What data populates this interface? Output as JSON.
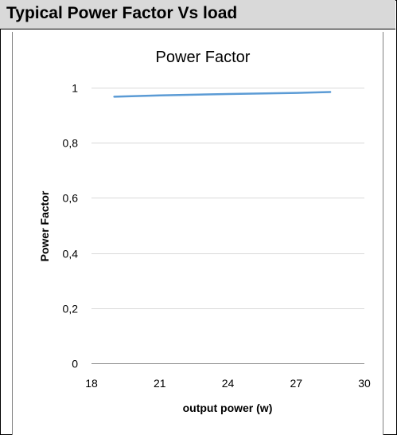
{
  "header": {
    "title": "Typical Power Factor Vs load"
  },
  "chart_data": {
    "type": "line",
    "title": "Power Factor",
    "xlabel": "output power (w)",
    "ylabel": "Power Factor",
    "xlim": [
      18,
      30
    ],
    "ylim": [
      0,
      1
    ],
    "xticks": [
      18,
      21,
      24,
      27,
      30
    ],
    "xtick_labels": [
      "18",
      "21",
      "24",
      "27",
      "30"
    ],
    "yticks": [
      0,
      0.2,
      0.4,
      0.6,
      0.8,
      1
    ],
    "ytick_labels": [
      "0",
      "0,2",
      "0,4",
      "0,6",
      "0,8",
      "1"
    ],
    "grid": "horizontal",
    "legend": "none",
    "series": [
      {
        "color": "#5b9bd5",
        "x": [
          19,
          21,
          24,
          27,
          28.5
        ],
        "y": [
          0.967,
          0.972,
          0.977,
          0.981,
          0.984
        ]
      }
    ]
  }
}
